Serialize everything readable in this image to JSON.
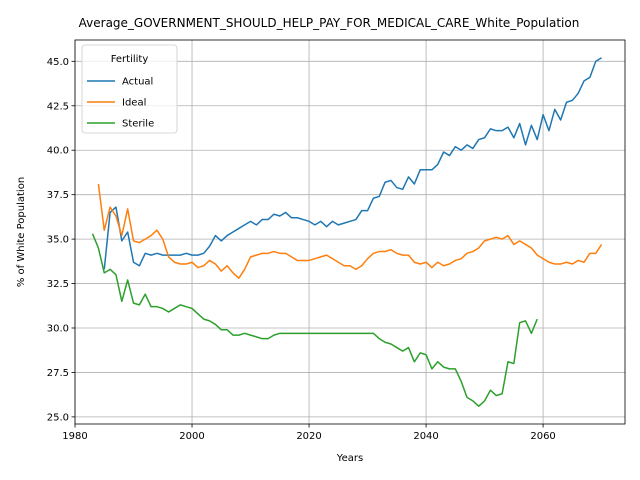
{
  "chart_data": {
    "type": "line",
    "title": "Average_GOVERNMENT_SHOULD_HELP_PAY_FOR_MEDICAL_CARE_White_Population",
    "xlabel": "Years",
    "ylabel": "% of White Population",
    "xlim": [
      1980,
      2074
    ],
    "ylim": [
      24.6,
      46.2
    ],
    "xticks": [
      1980,
      2000,
      2020,
      2040,
      2060
    ],
    "yticks": [
      25.0,
      27.5,
      30.0,
      32.5,
      35.0,
      37.5,
      40.0,
      42.5,
      45.0
    ],
    "xtick_labels": [
      "1980",
      "2000",
      "2020",
      "2040",
      "2060"
    ],
    "ytick_labels": [
      "25.0",
      "27.5",
      "30.0",
      "32.5",
      "35.0",
      "37.5",
      "40.0",
      "42.5",
      "45.0"
    ],
    "grid": true,
    "legend": {
      "title": "Fertility",
      "placement": "top-left"
    },
    "series": [
      {
        "name": "Actual",
        "color": "#1f77b4",
        "x": [
          1985,
          1986,
          1987,
          1988,
          1989,
          1990,
          1991,
          1992,
          1993,
          1994,
          1995,
          1996,
          1997,
          1998,
          1999,
          2000,
          2001,
          2002,
          2003,
          2004,
          2005,
          2006,
          2007,
          2008,
          2009,
          2010,
          2011,
          2012,
          2013,
          2014,
          2015,
          2016,
          2017,
          2018,
          2019,
          2020,
          2021,
          2022,
          2023,
          2024,
          2025,
          2026,
          2027,
          2028,
          2029,
          2030,
          2031,
          2032,
          2033,
          2034,
          2035,
          2036,
          2037,
          2038,
          2039,
          2040,
          2041,
          2042,
          2043,
          2044,
          2045,
          2046,
          2047,
          2048,
          2049,
          2050,
          2051,
          2052,
          2053,
          2054,
          2055,
          2056,
          2057,
          2058,
          2059,
          2060,
          2061,
          2062,
          2063,
          2064,
          2065,
          2066,
          2067,
          2068,
          2069,
          2070
        ],
        "y": [
          33.3,
          36.5,
          36.8,
          34.9,
          35.4,
          33.7,
          33.5,
          34.2,
          34.1,
          34.2,
          34.1,
          34.1,
          34.1,
          34.1,
          34.2,
          34.1,
          34.1,
          34.2,
          34.6,
          35.2,
          34.9,
          35.2,
          35.4,
          35.6,
          35.8,
          36.0,
          35.8,
          36.1,
          36.1,
          36.4,
          36.3,
          36.5,
          36.2,
          36.2,
          36.1,
          36.0,
          35.8,
          36.0,
          35.7,
          36.0,
          35.8,
          35.9,
          36.0,
          36.1,
          36.6,
          36.6,
          37.3,
          37.4,
          38.2,
          38.3,
          37.9,
          37.8,
          38.5,
          38.1,
          38.9,
          38.9,
          38.9,
          39.2,
          39.9,
          39.7,
          40.2,
          40.0,
          40.3,
          40.1,
          40.6,
          40.7,
          41.2,
          41.1,
          41.1,
          41.3,
          40.7,
          41.5,
          40.3,
          41.4,
          40.6,
          42.0,
          41.1,
          42.3,
          41.7,
          42.7,
          42.8,
          43.2,
          43.9,
          44.1,
          45.0,
          45.2
        ]
      },
      {
        "name": "Ideal",
        "color": "#ff7f0e",
        "x": [
          1984,
          1985,
          1986,
          1987,
          1988,
          1989,
          1990,
          1991,
          1992,
          1993,
          1994,
          1995,
          1996,
          1997,
          1998,
          1999,
          2000,
          2001,
          2002,
          2003,
          2004,
          2005,
          2006,
          2007,
          2008,
          2009,
          2010,
          2011,
          2012,
          2013,
          2014,
          2015,
          2016,
          2017,
          2018,
          2019,
          2020,
          2021,
          2022,
          2023,
          2024,
          2025,
          2026,
          2027,
          2028,
          2029,
          2030,
          2031,
          2032,
          2033,
          2034,
          2035,
          2036,
          2037,
          2038,
          2039,
          2040,
          2041,
          2042,
          2043,
          2044,
          2045,
          2046,
          2047,
          2048,
          2049,
          2050,
          2051,
          2052,
          2053,
          2054,
          2055,
          2056,
          2057,
          2058,
          2059,
          2060,
          2061,
          2062,
          2063,
          2064,
          2065,
          2066,
          2067,
          2068,
          2069,
          2070
        ],
        "y": [
          38.1,
          35.5,
          36.8,
          36.3,
          35.2,
          36.7,
          34.9,
          34.8,
          35.0,
          35.2,
          35.5,
          35.0,
          34.0,
          33.7,
          33.6,
          33.6,
          33.7,
          33.4,
          33.5,
          33.8,
          33.6,
          33.2,
          33.5,
          33.1,
          32.8,
          33.3,
          34.0,
          34.1,
          34.2,
          34.2,
          34.3,
          34.2,
          34.2,
          34.0,
          33.8,
          33.8,
          33.8,
          33.9,
          34.0,
          34.1,
          33.9,
          33.7,
          33.5,
          33.5,
          33.3,
          33.5,
          33.9,
          34.2,
          34.3,
          34.3,
          34.4,
          34.2,
          34.1,
          34.1,
          33.7,
          33.6,
          33.7,
          33.4,
          33.7,
          33.5,
          33.6,
          33.8,
          33.9,
          34.2,
          34.3,
          34.5,
          34.9,
          35.0,
          35.1,
          35.0,
          35.2,
          34.7,
          34.9,
          34.7,
          34.5,
          34.1,
          33.9,
          33.7,
          33.6,
          33.6,
          33.7,
          33.6,
          33.8,
          33.7,
          34.2,
          34.2,
          34.7
        ]
      },
      {
        "name": "Sterile",
        "color": "#2ca02c",
        "x": [
          1983,
          1984,
          1985,
          1986,
          1987,
          1988,
          1989,
          1990,
          1991,
          1992,
          1993,
          1994,
          1995,
          1996,
          1997,
          1998,
          1999,
          2000,
          2001,
          2002,
          2003,
          2004,
          2005,
          2006,
          2007,
          2008,
          2009,
          2010,
          2011,
          2012,
          2013,
          2014,
          2015,
          2016,
          2017,
          2018,
          2019,
          2020,
          2021,
          2022,
          2023,
          2024,
          2025,
          2026,
          2027,
          2028,
          2029,
          2030,
          2031,
          2032,
          2033,
          2034,
          2035,
          2036,
          2037,
          2038,
          2039,
          2040,
          2041,
          2042,
          2043,
          2044,
          2045,
          2046,
          2047,
          2048,
          2049,
          2050,
          2051,
          2052,
          2053,
          2054,
          2055,
          2056,
          2057,
          2058,
          2059
        ],
        "y": [
          35.3,
          34.5,
          33.1,
          33.3,
          33.0,
          31.5,
          32.7,
          31.4,
          31.3,
          31.9,
          31.2,
          31.2,
          31.1,
          30.9,
          31.1,
          31.3,
          31.2,
          31.1,
          30.8,
          30.5,
          30.4,
          30.2,
          29.9,
          29.9,
          29.6,
          29.6,
          29.7,
          29.6,
          29.5,
          29.4,
          29.4,
          29.6,
          29.7,
          29.7,
          29.7,
          29.7,
          29.7,
          29.7,
          29.7,
          29.7,
          29.7,
          29.7,
          29.7,
          29.7,
          29.7,
          29.7,
          29.7,
          29.7,
          29.7,
          29.4,
          29.2,
          29.1,
          28.9,
          28.7,
          28.9,
          28.1,
          28.6,
          28.5,
          27.7,
          28.1,
          27.8,
          27.7,
          27.7,
          27.0,
          26.1,
          25.9,
          25.6,
          25.9,
          26.5,
          26.2,
          26.3,
          28.1,
          28.0,
          30.3,
          30.4,
          29.7,
          30.5
        ]
      }
    ]
  }
}
